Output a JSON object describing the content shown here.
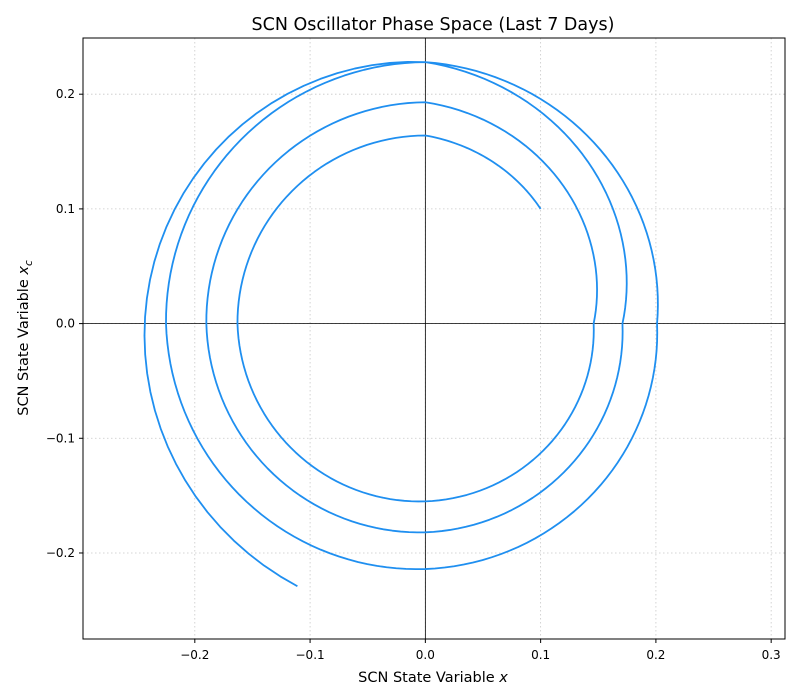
{
  "chart_data": {
    "type": "line",
    "title": "SCN Oscillator Phase Space (Last 7 Days)",
    "xlabel": {
      "prefix": "SCN State Variable ",
      "var": "x"
    },
    "ylabel": {
      "prefix": "SCN State Variable ",
      "var": "x",
      "sub": "c"
    },
    "xlim": [
      -0.297,
      0.312
    ],
    "ylim": [
      -0.275,
      0.249
    ],
    "xticks": [
      -0.2,
      -0.1,
      0.0,
      0.1,
      0.2,
      0.3
    ],
    "yticks": [
      -0.2,
      -0.1,
      0.0,
      0.1,
      0.2
    ],
    "xtick_labels": [
      "−0.2",
      "−0.1",
      "0.0",
      "0.1",
      "0.2",
      "0.3"
    ],
    "ytick_labels": [
      "−0.2",
      "−0.1",
      "0.0",
      "0.1",
      "0.2"
    ],
    "grid": true,
    "reference_lines": {
      "x": 0,
      "y": 0
    },
    "series": [
      {
        "color": "#1f8ff0",
        "start": {
          "x": 0.1,
          "y": 0.1
        },
        "end": {
          "x": -0.111,
          "y": -0.229
        },
        "crossings": [
          {
            "x": 0.0,
            "y": 0.164
          },
          {
            "x": -0.163,
            "y": 0.0
          },
          {
            "x": 0.0,
            "y": -0.155
          },
          {
            "x": 0.146,
            "y": 0.0
          },
          {
            "x": 0.0,
            "y": 0.193
          },
          {
            "x": -0.19,
            "y": 0.0
          },
          {
            "x": 0.0,
            "y": -0.182
          },
          {
            "x": 0.171,
            "y": 0.0
          },
          {
            "x": 0.0,
            "y": 0.228
          },
          {
            "x": -0.225,
            "y": 0.0
          },
          {
            "x": 0.0,
            "y": -0.214
          },
          {
            "x": 0.201,
            "y": 0.0
          },
          {
            "x": 0.0,
            "y": 0.228
          }
        ]
      }
    ],
    "annotations_note": ""
  }
}
